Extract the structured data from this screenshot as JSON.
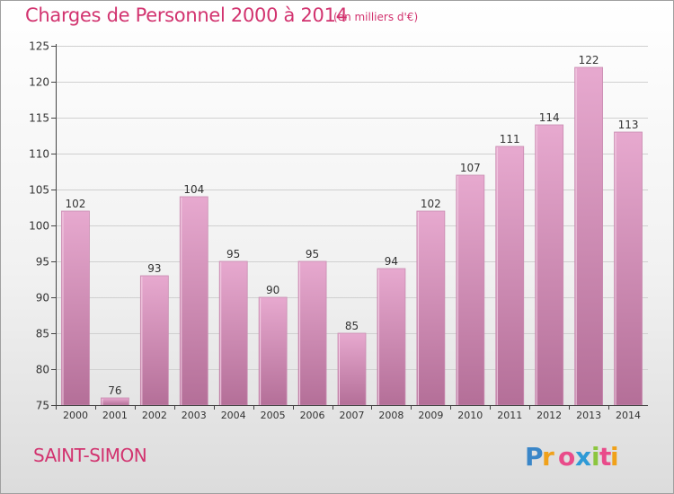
{
  "header": {
    "title": "Charges de Personnel 2000 à 2014",
    "subtitle": "(en milliers d'€)"
  },
  "footer": {
    "city": "SAINT-SIMON",
    "logo_text": "Proxiti"
  },
  "colors": {
    "title": "#d2336f",
    "bar_top": "#e7a9cf",
    "bar_bottom": "#b46f98",
    "axis": "#444444"
  },
  "chart_data": {
    "type": "bar",
    "categories": [
      "2000",
      "2001",
      "2002",
      "2003",
      "2004",
      "2005",
      "2006",
      "2007",
      "2008",
      "2009",
      "2010",
      "2011",
      "2012",
      "2013",
      "2014"
    ],
    "values": [
      102,
      76,
      93,
      104,
      95,
      90,
      95,
      85,
      94,
      102,
      107,
      111,
      114,
      122,
      113
    ],
    "ylim": [
      75,
      125
    ],
    "yticks": [
      75,
      80,
      85,
      90,
      95,
      100,
      105,
      110,
      115,
      120,
      125
    ],
    "grid": true,
    "data_labels": true
  }
}
